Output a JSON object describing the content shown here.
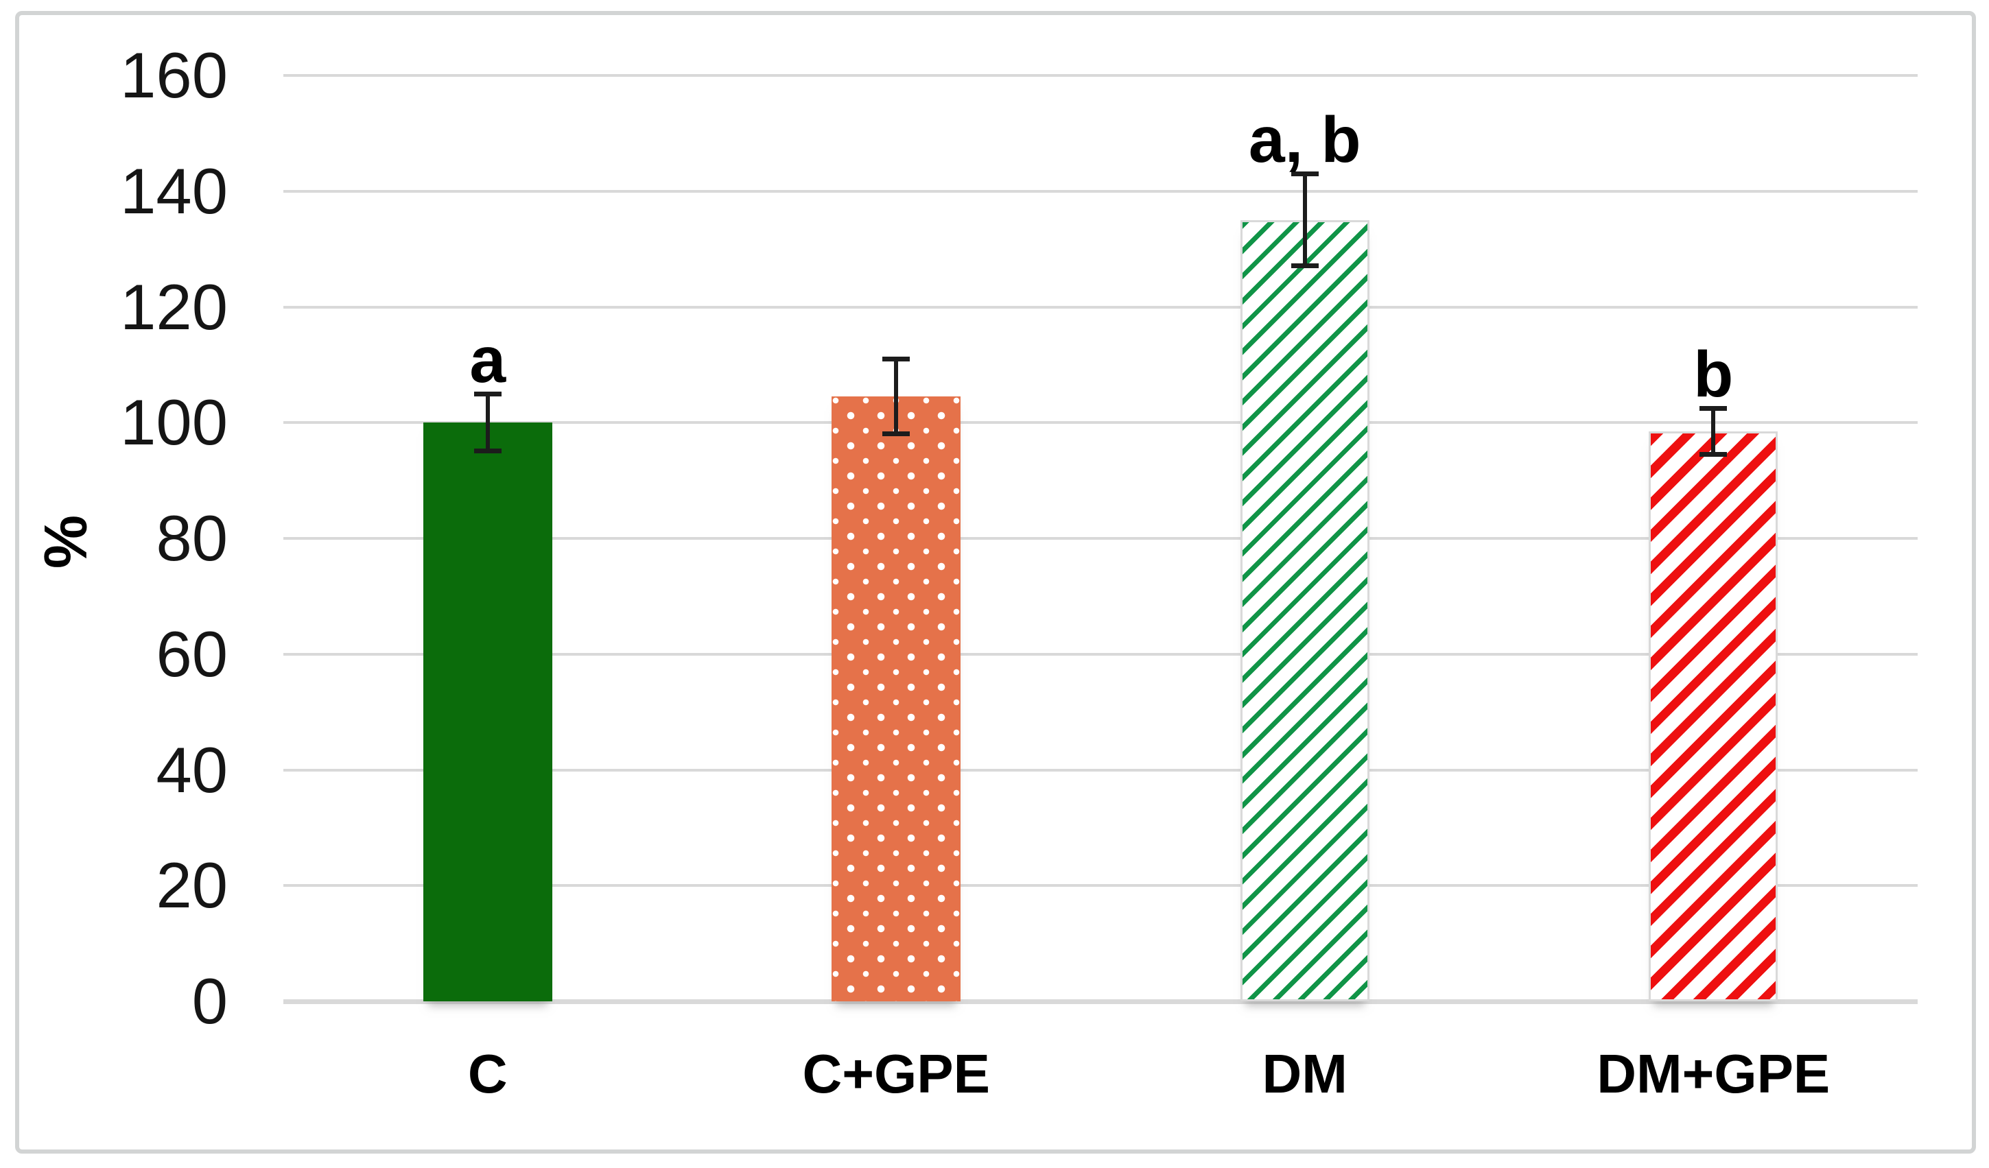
{
  "chart_data": {
    "type": "bar",
    "title": "",
    "ylabel": "%",
    "xlabel": "",
    "categories": [
      "C",
      "C+GPE",
      "DM",
      "DM+GPE"
    ],
    "values": [
      100,
      104.5,
      135,
      98.5
    ],
    "error_bars": [
      5,
      6.5,
      8,
      4
    ],
    "sig_labels": [
      "a",
      "",
      "a, b",
      "b"
    ],
    "ylim": [
      0,
      160
    ],
    "yticks": [
      0,
      20,
      40,
      60,
      80,
      100,
      120,
      140,
      160
    ],
    "grid": true,
    "legend_position": "none",
    "bar_styles": [
      {
        "name": "solid-dark-green",
        "fill": "#0b6c0b",
        "pattern": "solid"
      },
      {
        "name": "orange-white-dots",
        "fill": "#e5724a",
        "pattern": "dots",
        "pattern_color": "#ffffff"
      },
      {
        "name": "green-diagonal-dash",
        "fill": "#ffffff",
        "pattern": "diagonal-hatch",
        "pattern_color": "#109447"
      },
      {
        "name": "red-diagonal-stripes",
        "fill": "#ffffff",
        "pattern": "diagonal-stripe",
        "pattern_color": "#ee1010"
      }
    ],
    "colors": {
      "gridline": "#d9d9d9",
      "axis_line": "#d9d9d9",
      "outer_border": "#d2d4d4",
      "error_bar": "#1c1c1c",
      "text": "#000000"
    }
  }
}
